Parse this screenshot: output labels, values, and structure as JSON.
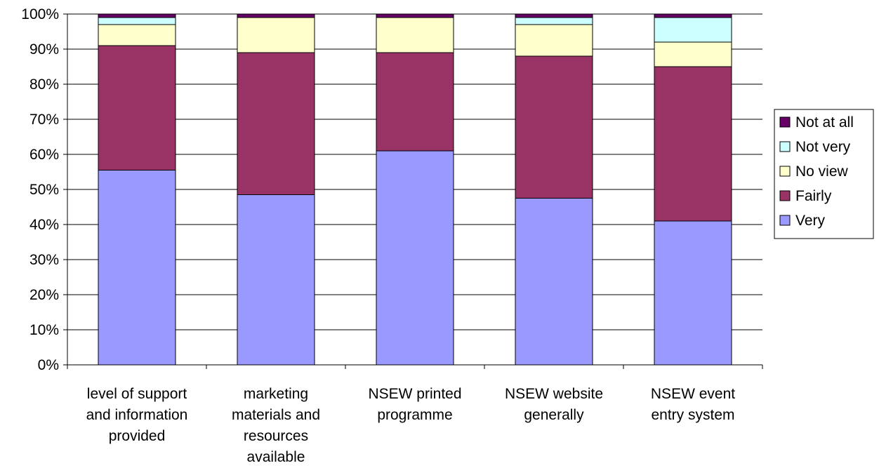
{
  "chart_data": {
    "type": "bar",
    "stacked": true,
    "percent": true,
    "categories": [
      [
        "level of support",
        "and information",
        "provided"
      ],
      [
        "marketing",
        "materials and",
        "resources",
        "available"
      ],
      [
        "NSEW printed",
        "programme"
      ],
      [
        "NSEW website",
        "generally"
      ],
      [
        "NSEW event",
        "entry system"
      ]
    ],
    "series": [
      {
        "name": "Very",
        "color": "#9999FF",
        "values": [
          55.5,
          48.5,
          61,
          47.5,
          41
        ]
      },
      {
        "name": "Fairly",
        "color": "#993366",
        "values": [
          35.5,
          40.5,
          28,
          40.5,
          44
        ]
      },
      {
        "name": "No view",
        "color": "#FFFFCC",
        "values": [
          6,
          10,
          10,
          9,
          7
        ]
      },
      {
        "name": "Not very",
        "color": "#CCFFFF",
        "values": [
          2,
          0,
          0,
          2,
          7
        ]
      },
      {
        "name": "Not at all",
        "color": "#660066",
        "values": [
          1,
          1,
          1,
          1,
          1
        ]
      }
    ],
    "y_ticks": [
      "0%",
      "10%",
      "20%",
      "30%",
      "40%",
      "50%",
      "60%",
      "70%",
      "80%",
      "90%",
      "100%"
    ],
    "ylim": [
      0,
      100
    ],
    "grid": true,
    "legend_position": "right",
    "legend_order": [
      "Not at all",
      "Not very",
      "No view",
      "Fairly",
      "Very"
    ]
  }
}
